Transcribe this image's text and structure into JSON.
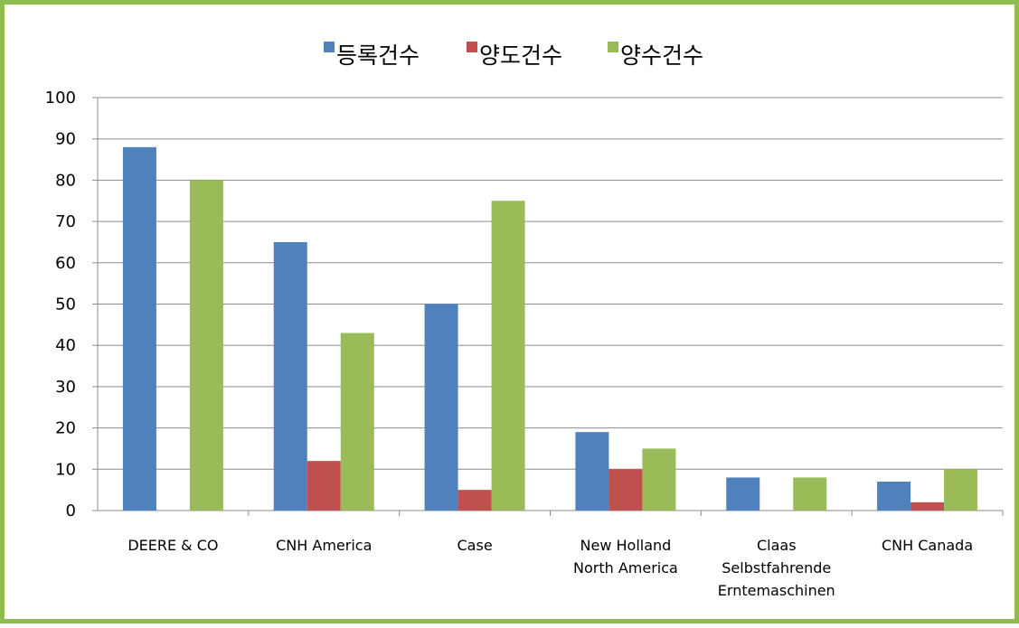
{
  "colors": {
    "border": "#8fbc4e",
    "grid": "#8c8c8c",
    "axis": "#8c8c8c"
  },
  "chart_data": {
    "type": "bar",
    "title": "",
    "xlabel": "",
    "ylabel": "",
    "ylim": [
      0,
      100
    ],
    "yticks": [
      0,
      10,
      20,
      30,
      40,
      50,
      60,
      70,
      80,
      90,
      100
    ],
    "grid": true,
    "legend_position": "top-center",
    "categories": [
      [
        "DEERE & CO"
      ],
      [
        "CNH America"
      ],
      [
        "Case"
      ],
      [
        "New Holland",
        "North America"
      ],
      [
        "Claas",
        "Selbstfahrende",
        "Erntemaschinen"
      ],
      [
        "CNH Canada"
      ]
    ],
    "series": [
      {
        "name": "등록건수",
        "color": "#4f81bd",
        "values": [
          88,
          65,
          50,
          19,
          8,
          7
        ]
      },
      {
        "name": "양도건수",
        "color": "#c0504d",
        "values": [
          0,
          12,
          5,
          10,
          0,
          2
        ]
      },
      {
        "name": "양수건수",
        "color": "#9bbb59",
        "values": [
          80,
          43,
          75,
          15,
          8,
          10
        ]
      }
    ]
  }
}
